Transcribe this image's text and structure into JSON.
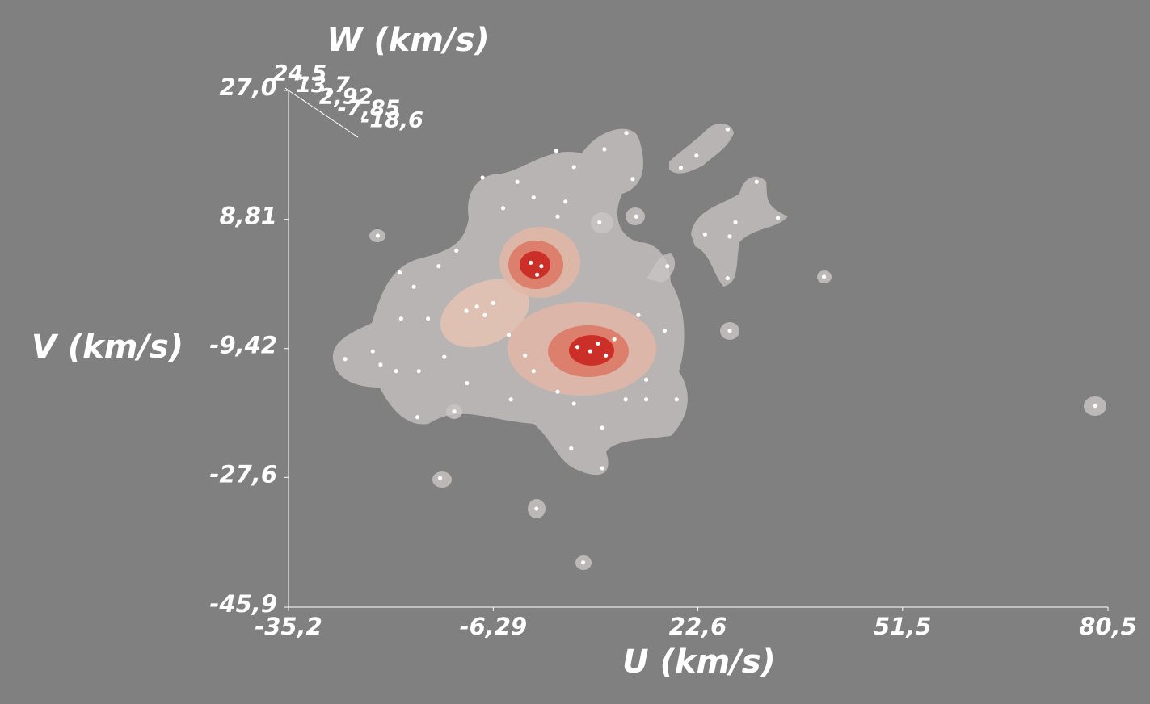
{
  "chart_data": {
    "type": "scatter",
    "x_label": "U (km/s)",
    "y_label": "V (km/s)",
    "z_label": "W (km/s)",
    "color": "#ffffff",
    "xlim": [
      -35.2,
      80.5
    ],
    "xticks": [
      {
        "value": -35.2,
        "label": "-35,2"
      },
      {
        "value": -6.29,
        "label": "-6,29"
      },
      {
        "value": 22.6,
        "label": "22,6"
      },
      {
        "value": 51.5,
        "label": "51,5"
      },
      {
        "value": 80.5,
        "label": "80,5"
      }
    ],
    "ylim": [
      -45.9,
      27.0
    ],
    "yticks": [
      {
        "value": -45.9,
        "label": "-45,9"
      },
      {
        "value": -27.6,
        "label": "-27,6"
      },
      {
        "value": -9.42,
        "label": "-9,42"
      },
      {
        "value": 8.81,
        "label": "8,81"
      },
      {
        "value": 27.0,
        "label": "27,0"
      }
    ],
    "zlim": [
      24.5,
      -18.6
    ],
    "zticks": [
      {
        "value": 24.5,
        "label": "24,5"
      },
      {
        "value": 13.7,
        "label": "13,7"
      },
      {
        "value": 2.92,
        "label": "2,92"
      },
      {
        "value": -7.85,
        "label": "-7,85"
      },
      {
        "value": -18.6,
        "label": "-18,6"
      }
    ],
    "x": [
      -22.6,
      -7.8,
      -2.9,
      2.6,
      5.1,
      9.4,
      12.5,
      13.4,
      20.2,
      22.4,
      26.8,
      30.9,
      27.9,
      33.9,
      23.6,
      27.1,
      26.8,
      40.4,
      78.7,
      27.1,
      18.3,
      13.9,
      8.7,
      2.8,
      3.9,
      -0.6,
      -4.9,
      -19.5,
      -17.5,
      -14.0,
      -11.5,
      -19.3,
      -15.5,
      -27.2,
      -23.3,
      -22.2,
      -20.0,
      -16.8,
      -17.0,
      -13.2,
      -11.8,
      -10.0,
      -3.8,
      -0.6,
      2.8,
      5.1,
      9.1,
      4.7,
      9.1,
      12.4,
      15.3,
      17.9,
      19.6,
      15.3,
      -13.8,
      -0.2,
      6.4,
      -1.0,
      0.5,
      -0.1,
      -8.6,
      -7.5,
      -10.1,
      -6.3,
      7.4,
      8.5,
      9.6,
      5.6,
      10.8,
      14.2,
      -4.1,
      -1.8
    ],
    "values": [
      6.5,
      14.7,
      14.1,
      18.5,
      16.2,
      18.7,
      21.0,
      14.5,
      16.1,
      17.8,
      21.5,
      14.1,
      8.4,
      9.0,
      6.7,
      6.4,
      0.5,
      0.7,
      -17.5,
      -6.9,
      2.2,
      9.2,
      8.4,
      9.2,
      11.3,
      11.9,
      10.4,
      1.3,
      -0.7,
      2.2,
      4.4,
      -5.2,
      -5.2,
      -10.9,
      -9.8,
      -11.7,
      -12.6,
      -12.6,
      -19.1,
      -10.6,
      -18.3,
      -14.3,
      -16.6,
      -12.6,
      -15.5,
      -17.2,
      -20.6,
      -23.5,
      -26.3,
      -16.6,
      -13.8,
      -6.9,
      -16.6,
      -16.6,
      -27.7,
      -32.0,
      -39.6,
      2.7,
      2.2,
      1.0,
      -3.5,
      -4.7,
      -4.1,
      -3.0,
      -9.8,
      -8.7,
      -10.4,
      -9.2,
      -8.1,
      -4.7,
      -7.5,
      -10.4
    ]
  }
}
